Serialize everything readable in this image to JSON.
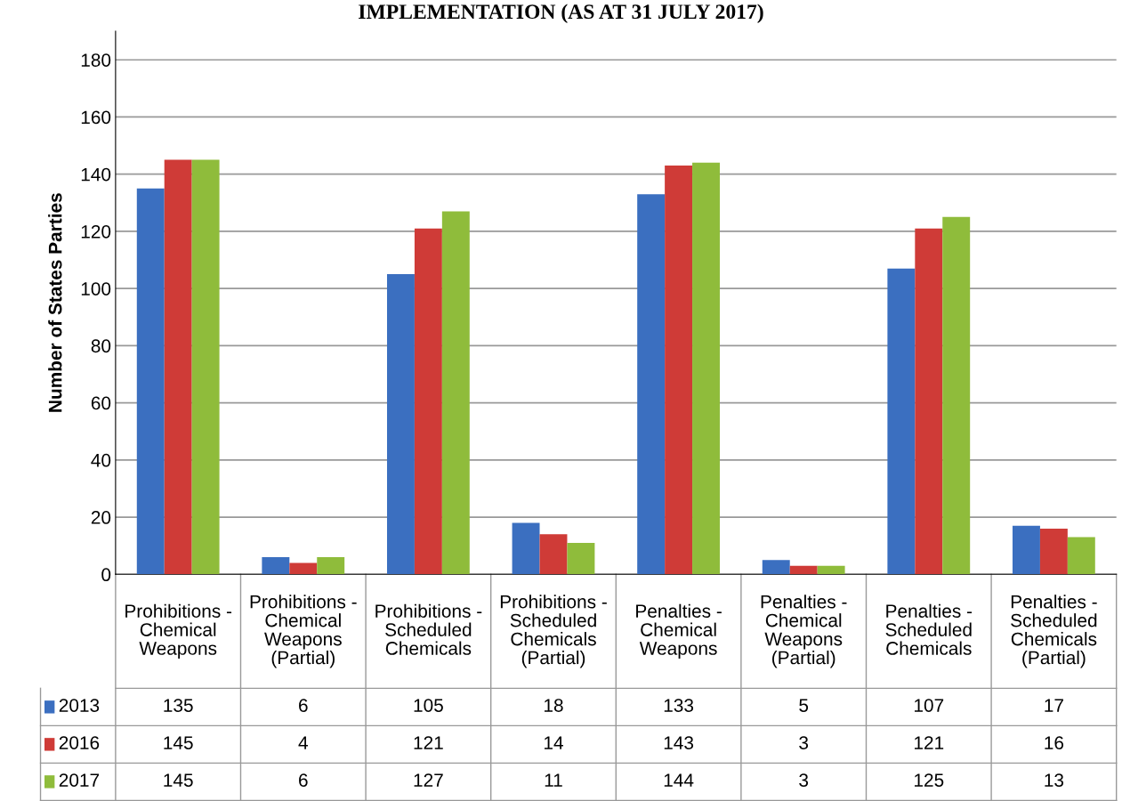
{
  "chart_data": {
    "type": "bar",
    "title": "IMPLEMENTATION (AS AT 31 JULY 2017)",
    "ylabel": "Number of States Parties",
    "categories": [
      "Prohibitions - Chemical Weapons",
      "Prohibitions - Chemical Weapons (Partial)",
      "Prohibitions - Scheduled Chemicals",
      "Prohibitions - Scheduled Chemicals (Partial)",
      "Penalties - Chemical Weapons",
      "Penalties - Chemical Weapons (Partial)",
      "Penalties - Scheduled Chemicals",
      "Penalties - Scheduled Chemicals (Partial)"
    ],
    "series": [
      {
        "name": "2013",
        "color": "#3b6fc0",
        "values": [
          135,
          6,
          105,
          18,
          133,
          5,
          107,
          17
        ]
      },
      {
        "name": "2016",
        "color": "#cf3b37",
        "values": [
          145,
          4,
          121,
          14,
          143,
          3,
          121,
          16
        ]
      },
      {
        "name": "2017",
        "color": "#8fbc3b",
        "values": [
          145,
          6,
          127,
          11,
          144,
          3,
          125,
          13
        ]
      }
    ],
    "ylim": [
      0,
      190
    ],
    "yticks": [
      0,
      20,
      40,
      60,
      80,
      100,
      120,
      140,
      160,
      180
    ],
    "grid": "y",
    "legend": "bottom",
    "data_labels": true
  }
}
